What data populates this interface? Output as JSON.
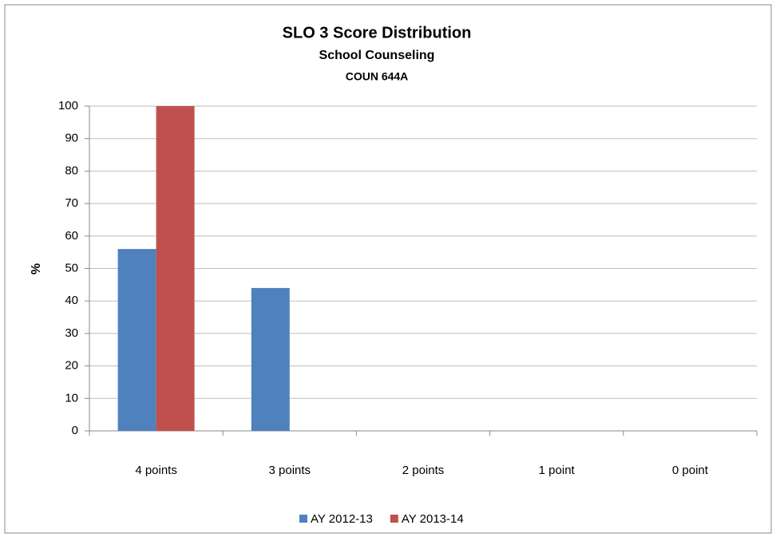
{
  "chart_data": {
    "type": "bar",
    "title": "SLO 3 Score Distribution",
    "subtitle": [
      "School Counseling",
      "COUN 644A"
    ],
    "y_label": "%",
    "categories": [
      "4 points",
      "3 points",
      "2 points",
      "1 point",
      "0 point"
    ],
    "series": [
      {
        "name": "AY 2012-13",
        "color": "#4f81bd",
        "values": [
          56,
          44,
          0,
          0,
          0
        ]
      },
      {
        "name": "AY 2013-14",
        "color": "#c0504d",
        "values": [
          100,
          0,
          0,
          0,
          0
        ]
      }
    ],
    "ylim": [
      0,
      100
    ],
    "yticks": [
      0,
      10,
      20,
      30,
      40,
      50,
      60,
      70,
      80,
      90,
      100
    ],
    "grid": true,
    "legend": "bottom"
  }
}
